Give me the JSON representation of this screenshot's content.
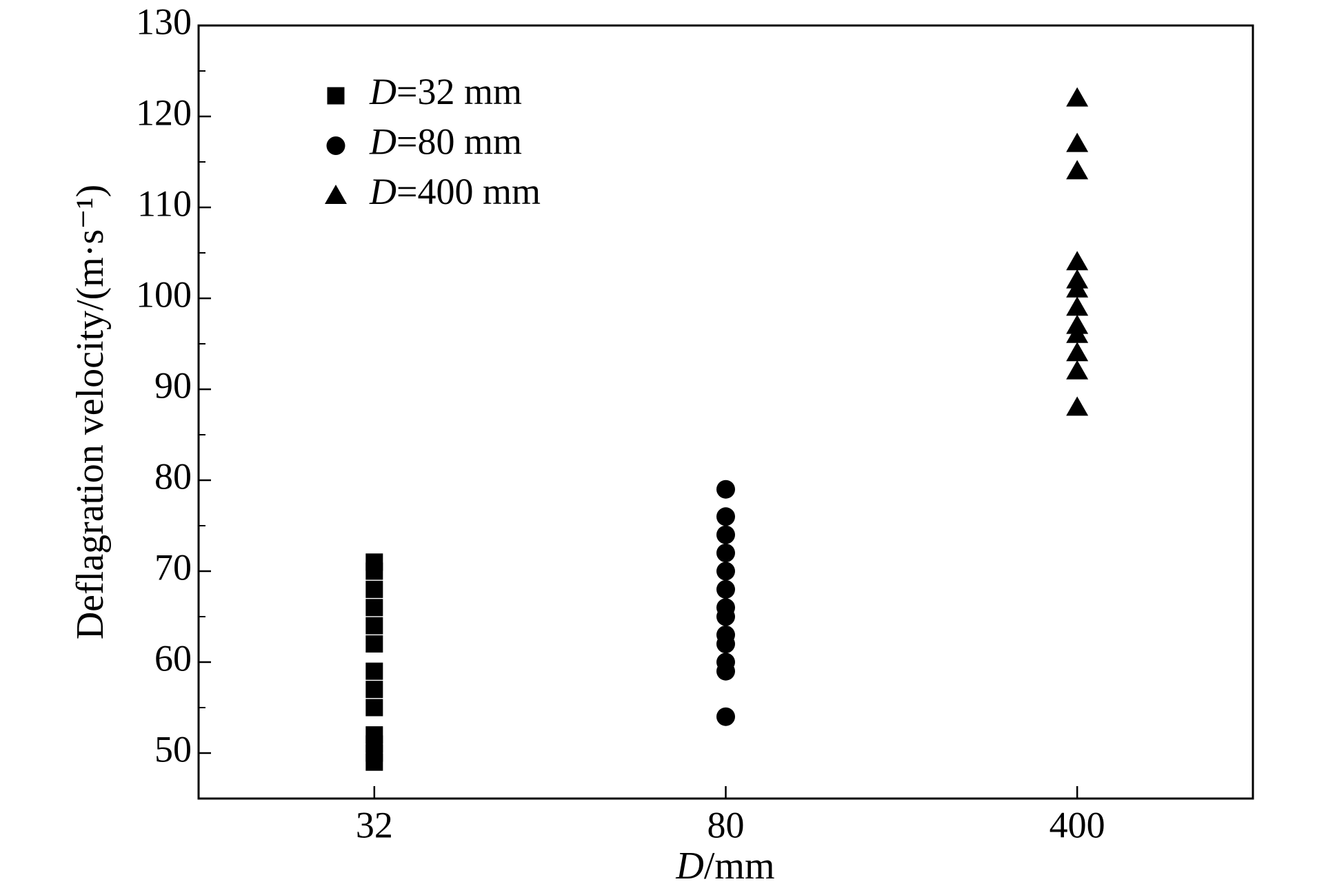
{
  "chart_data": {
    "type": "scatter",
    "x_label": "D/mm",
    "y_label": "Deflagration velocity/(m·s⁻¹)",
    "categories": [
      "32",
      "80",
      "400"
    ],
    "ylim": [
      45,
      130
    ],
    "yticks": [
      50,
      60,
      70,
      80,
      90,
      100,
      110,
      120,
      130
    ],
    "y_minor_step": 5,
    "legend": "upper left",
    "series": [
      {
        "name": "D=32 mm",
        "color": "#000000",
        "marker": "square",
        "x": [
          "32",
          "32",
          "32",
          "32",
          "32",
          "32",
          "32",
          "32",
          "32",
          "32",
          "32",
          "32",
          "32"
        ],
        "values": [
          49,
          50,
          51,
          52,
          55,
          57,
          59,
          62,
          64,
          66,
          68,
          70,
          71
        ]
      },
      {
        "name": "D=80 mm",
        "color": "#000000",
        "marker": "circle",
        "x": [
          "80",
          "80",
          "80",
          "80",
          "80",
          "80",
          "80",
          "80",
          "80",
          "80",
          "80",
          "80",
          "80"
        ],
        "values": [
          54,
          59,
          60,
          62,
          63,
          65,
          66,
          68,
          70,
          72,
          74,
          76,
          79
        ]
      },
      {
        "name": "D=400 mm",
        "color": "#000000",
        "marker": "triangle",
        "x": [
          "400",
          "400",
          "400",
          "400",
          "400",
          "400",
          "400",
          "400",
          "400",
          "400",
          "400",
          "400"
        ],
        "values": [
          88,
          92,
          94,
          96,
          97,
          99,
          101,
          102,
          104,
          114,
          117,
          122
        ]
      }
    ]
  }
}
